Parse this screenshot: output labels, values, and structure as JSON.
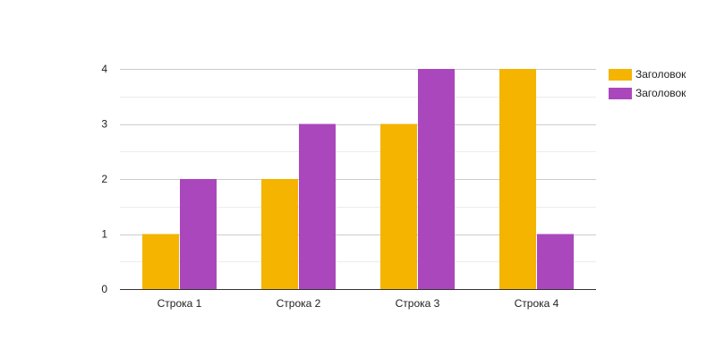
{
  "chart_data": {
    "type": "bar",
    "title": "",
    "xlabel": "",
    "ylabel": "",
    "categories": [
      "Строка 1",
      "Строка 2",
      "Строка 3",
      "Строка 4"
    ],
    "series": [
      {
        "name": "Заголовок",
        "color": "#f4b400",
        "values": [
          1,
          2,
          3,
          4
        ]
      },
      {
        "name": "Заголовок",
        "color": "#ab47bc",
        "values": [
          2,
          3,
          4,
          1
        ]
      }
    ],
    "ylim": [
      0,
      4
    ],
    "yticks": [
      "0",
      "1",
      "2",
      "3",
      "4"
    ],
    "grid": true,
    "legend_position": "right"
  }
}
